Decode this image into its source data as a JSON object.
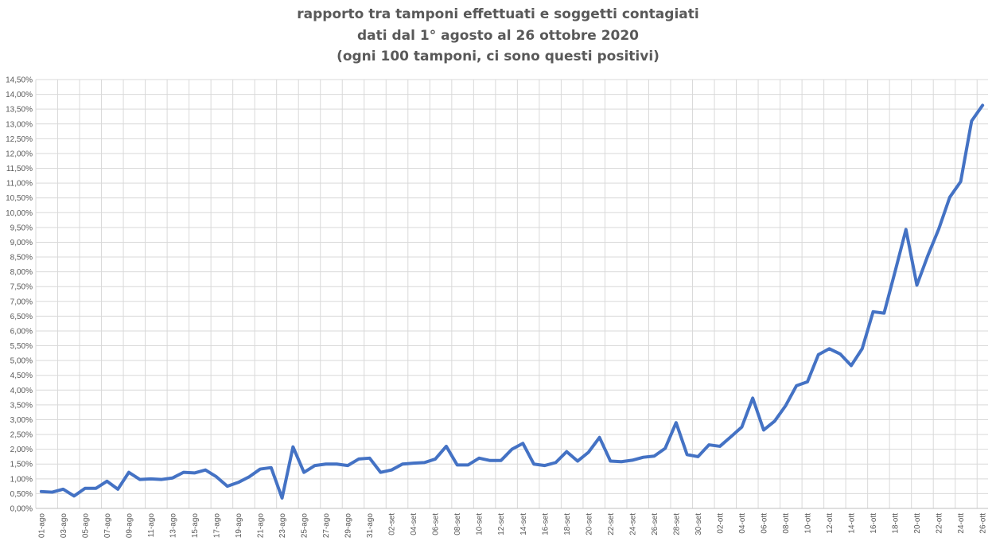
{
  "chart_data": {
    "type": "line",
    "title": "rapporto tra tamponi effettuati e soggetti contagiati",
    "subtitle_lines": [
      "dati dal 1° agosto al 26 ottobre 2020",
      "(ogni 100 tamponi, ci sono questi positivi)"
    ],
    "xlabel": "",
    "ylabel": "",
    "ylim": [
      0,
      14.5
    ],
    "y_ticks": [
      "0,00%",
      "0,50%",
      "1,00%",
      "1,50%",
      "2,00%",
      "2,50%",
      "3,00%",
      "3,50%",
      "4,00%",
      "4,50%",
      "5,00%",
      "5,50%",
      "6,00%",
      "6,50%",
      "7,00%",
      "7,50%",
      "8,00%",
      "8,50%",
      "9,00%",
      "9,50%",
      "10,00%",
      "10,50%",
      "11,00%",
      "11,50%",
      "12,00%",
      "12,50%",
      "13,00%",
      "13,50%",
      "14,00%",
      "14,50%"
    ],
    "x_tick_labels": [
      "01-ago",
      "03-ago",
      "05-ago",
      "07-ago",
      "09-ago",
      "11-ago",
      "13-ago",
      "15-ago",
      "17-ago",
      "19-ago",
      "21-ago",
      "23-ago",
      "25-ago",
      "27-ago",
      "29-ago",
      "31-ago",
      "02-set",
      "04-set",
      "06-set",
      "08-set",
      "10-set",
      "12-set",
      "14-set",
      "16-set",
      "18-set",
      "20-set",
      "22-set",
      "24-set",
      "26-set",
      "28-set",
      "30-set",
      "02-ott",
      "04-ott",
      "06-ott",
      "08-ott",
      "10-ott",
      "12-ott",
      "14-ott",
      "16-ott",
      "18-ott",
      "20-ott",
      "22-ott",
      "24-ott",
      "26-ott"
    ],
    "grid": true,
    "series": [
      {
        "color": "#4472C4",
        "x": [
          "01-ago",
          "02-ago",
          "03-ago",
          "04-ago",
          "05-ago",
          "06-ago",
          "07-ago",
          "08-ago",
          "09-ago",
          "10-ago",
          "11-ago",
          "12-ago",
          "13-ago",
          "14-ago",
          "15-ago",
          "16-ago",
          "17-ago",
          "18-ago",
          "19-ago",
          "20-ago",
          "21-ago",
          "22-ago",
          "23-ago",
          "24-ago",
          "25-ago",
          "26-ago",
          "27-ago",
          "28-ago",
          "29-ago",
          "30-ago",
          "31-ago",
          "01-set",
          "02-set",
          "03-set",
          "04-set",
          "05-set",
          "06-set",
          "07-set",
          "08-set",
          "09-set",
          "10-set",
          "11-set",
          "12-set",
          "13-set",
          "14-set",
          "15-set",
          "16-set",
          "17-set",
          "18-set",
          "19-set",
          "20-set",
          "21-set",
          "22-set",
          "23-set",
          "24-set",
          "25-set",
          "26-set",
          "27-set",
          "28-set",
          "29-set",
          "30-set",
          "01-ott",
          "02-ott",
          "03-ott",
          "04-ott",
          "05-ott",
          "06-ott",
          "07-ott",
          "08-ott",
          "09-ott",
          "10-ott",
          "11-ott",
          "12-ott",
          "13-ott",
          "14-ott",
          "15-ott",
          "16-ott",
          "17-ott",
          "18-ott",
          "19-ott",
          "20-ott",
          "21-ott",
          "22-ott",
          "23-ott",
          "24-ott",
          "25-ott",
          "26-ott"
        ],
        "values": [
          0.57,
          0.55,
          0.65,
          0.42,
          0.68,
          0.68,
          0.92,
          0.65,
          1.22,
          0.98,
          1.0,
          0.98,
          1.03,
          1.22,
          1.2,
          1.3,
          1.07,
          0.75,
          0.88,
          1.07,
          1.33,
          1.38,
          0.35,
          2.08,
          1.22,
          1.45,
          1.5,
          1.5,
          1.45,
          1.67,
          1.7,
          1.22,
          1.3,
          1.5,
          1.53,
          1.55,
          1.67,
          2.1,
          1.47,
          1.47,
          1.7,
          1.62,
          1.62,
          2.0,
          2.2,
          1.5,
          1.45,
          1.55,
          1.92,
          1.6,
          1.9,
          2.4,
          1.6,
          1.58,
          1.63,
          1.73,
          1.77,
          2.03,
          2.9,
          1.82,
          1.75,
          2.15,
          2.1,
          2.42,
          2.75,
          3.73,
          2.65,
          2.95,
          3.47,
          4.15,
          4.28,
          5.2,
          5.4,
          5.22,
          4.83,
          5.4,
          6.65,
          6.6,
          8.0,
          9.43,
          7.55,
          8.55,
          9.45,
          10.52,
          11.05,
          13.1,
          13.63
        ]
      }
    ]
  }
}
